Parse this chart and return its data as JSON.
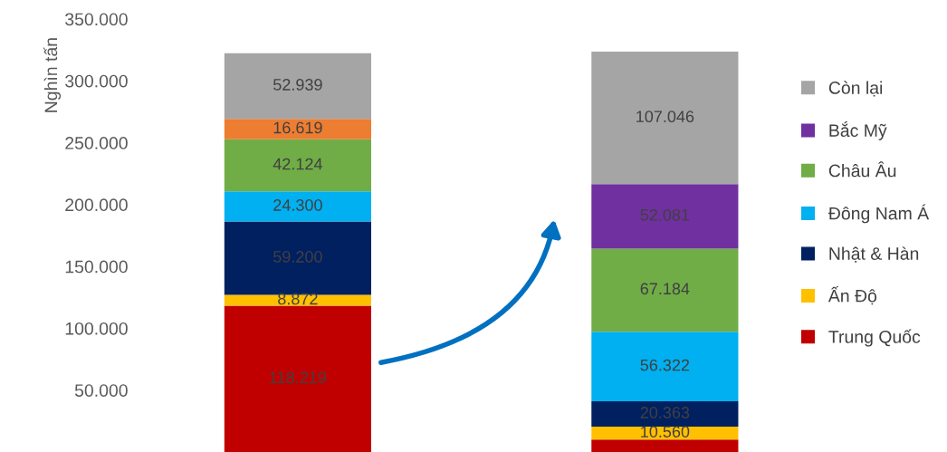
{
  "chart_data": {
    "type": "bar",
    "stacked": true,
    "ylabel": "Nghìn tấn",
    "categories": [
      null,
      null
    ],
    "ylim": [
      0,
      350000
    ],
    "yticks": [
      {
        "value": 50000,
        "label": "50.000"
      },
      {
        "value": 100000,
        "label": "100.000"
      },
      {
        "value": 150000,
        "label": "150.000"
      },
      {
        "value": 200000,
        "label": "200.000"
      },
      {
        "value": 250000,
        "label": "250.000"
      },
      {
        "value": 300000,
        "label": "300.000"
      },
      {
        "value": 350000,
        "label": "350.000"
      }
    ],
    "series": [
      {
        "name": "Trung Quốc",
        "color": "#c00000",
        "values": [
          118219,
          10000
        ],
        "value_labels": [
          "118.219",
          null
        ]
      },
      {
        "name": "Ấn Độ",
        "color": "#ffc000",
        "values": [
          8872,
          10560
        ],
        "value_labels": [
          "8.872",
          "10.560"
        ]
      },
      {
        "name": "Nhật & Hàn",
        "color": "#002060",
        "values": [
          59200,
          20363
        ],
        "value_labels": [
          "59.200",
          "20.363"
        ]
      },
      {
        "name": "Đông Nam Á",
        "color": "#00b0f0",
        "values": [
          24300,
          56322
        ],
        "value_labels": [
          "24.300",
          "56.322"
        ]
      },
      {
        "name": "Châu Âu",
        "color": "#70ad47",
        "values": [
          42124,
          67184
        ],
        "value_labels": [
          "42.124",
          "67.184"
        ]
      },
      {
        "color": "#ed7d31",
        "values": [
          16619,
          null
        ],
        "value_labels": [
          "16.619",
          null
        ]
      },
      {
        "name": "Bắc Mỹ",
        "color": "#7030a0",
        "values": [
          null,
          52081
        ],
        "value_labels": [
          null,
          "52.081"
        ]
      },
      {
        "name": "Còn lại",
        "color": "#a5a5a5",
        "values": [
          52939,
          107046
        ],
        "value_labels": [
          "52.939",
          "107.046"
        ]
      }
    ],
    "legend": "right",
    "grid": false
  }
}
